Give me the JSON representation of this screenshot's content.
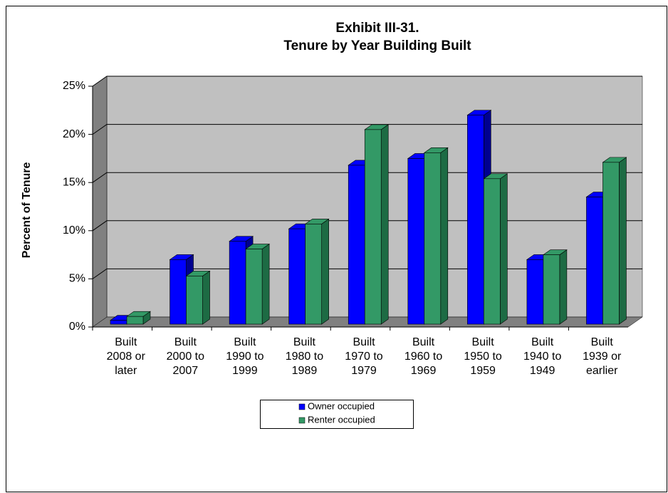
{
  "chart_data": {
    "type": "bar3d",
    "title": "Exhibit III-31.",
    "subtitle": "Tenure by Year Building Built",
    "y_label": "Percent of Tenure",
    "categories": [
      "Built\n2008 or\nlater",
      "Built\n2000 to\n2007",
      "Built\n1990 to\n1999",
      "Built\n1980 to\n1989",
      "Built\n1970 to\n1979",
      "Built\n1960 to\n1969",
      "Built\n1950 to\n1959",
      "Built\n1940 to\n1949",
      "Built\n1939 or\nearlier"
    ],
    "series": [
      {
        "name": "Owner occupied",
        "color": "#0000ff",
        "side_color": "#000090",
        "values": [
          0.4,
          6.7,
          8.6,
          9.9,
          16.5,
          17.2,
          21.7,
          6.7,
          13.2
        ]
      },
      {
        "name": "Renter occupied",
        "color": "#339966",
        "side_color": "#1d6b44",
        "values": [
          0.8,
          5.0,
          7.8,
          10.4,
          20.2,
          17.8,
          15.1,
          7.2,
          16.8
        ]
      }
    ],
    "ylim": [
      0,
      25
    ],
    "yticks": [
      {
        "value": 0,
        "label": "0%"
      },
      {
        "value": 5,
        "label": "5%"
      },
      {
        "value": 10,
        "label": "10%"
      },
      {
        "value": 15,
        "label": "15%"
      },
      {
        "value": 20,
        "label": "20%"
      },
      {
        "value": 25,
        "label": "25%"
      }
    ],
    "grid": true
  }
}
